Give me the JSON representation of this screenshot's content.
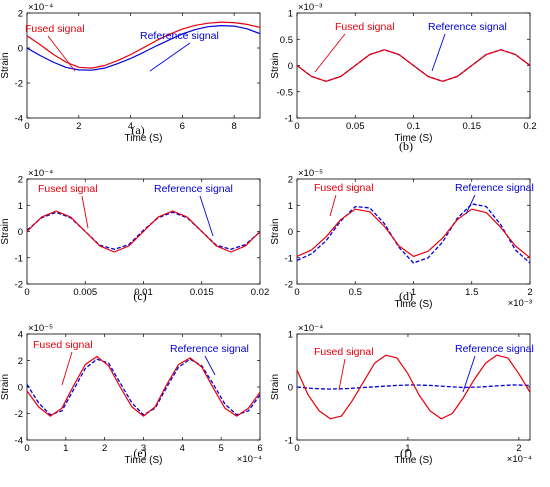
{
  "chart_data": [
    {
      "type": "line",
      "panel_label": "(a)",
      "xlabel": "Time (S)",
      "ylabel": "Strain",
      "exponent_y": "×10⁻⁴",
      "exponent_x": "",
      "xlim": [
        0,
        9
      ],
      "ylim": [
        -4,
        2
      ],
      "xticks": [
        0,
        2,
        4,
        6,
        8
      ],
      "xtick_labels": [
        "0",
        "2",
        "4",
        "6",
        "8"
      ],
      "yticks": [
        -4,
        -2,
        0,
        2
      ],
      "ytick_labels": [
        "-4",
        "-2",
        "0",
        "2"
      ],
      "annotations": [
        {
          "text": "Fused signal",
          "color": "#e8000b"
        },
        {
          "text": "Reference signal",
          "color": "#0000dd"
        }
      ],
      "series": [
        {
          "color": "#e8000b",
          "style": "solid",
          "x": [
            0,
            0.5,
            1,
            1.5,
            2,
            2.5,
            3,
            3.5,
            4,
            4.5,
            5,
            5.5,
            6,
            6.5,
            7,
            7.5,
            8,
            8.5,
            9
          ],
          "y": [
            0.7,
            0.2,
            -0.35,
            -0.8,
            -1.1,
            -1.15,
            -1.0,
            -0.72,
            -0.38,
            0.02,
            0.42,
            0.78,
            1.08,
            1.3,
            1.42,
            1.48,
            1.45,
            1.35,
            1.18
          ]
        },
        {
          "color": "#0000dd",
          "style": "solid",
          "x": [
            0,
            0.5,
            1,
            1.5,
            2,
            2.5,
            3,
            3.5,
            4,
            4.5,
            5,
            5.5,
            6,
            6.5,
            7,
            7.5,
            8,
            8.5,
            9
          ],
          "y": [
            0.0,
            -0.42,
            -0.8,
            -1.1,
            -1.25,
            -1.27,
            -1.15,
            -0.9,
            -0.6,
            -0.25,
            0.12,
            0.47,
            0.8,
            1.05,
            1.22,
            1.28,
            1.25,
            1.1,
            0.82
          ]
        }
      ]
    },
    {
      "type": "line",
      "panel_label": "(b)",
      "xlabel": "Time (S)",
      "ylabel": "Strain",
      "exponent_y": "×10⁻³",
      "exponent_x": "",
      "xlim": [
        0,
        0.2
      ],
      "ylim": [
        -1,
        1
      ],
      "xticks": [
        0,
        0.05,
        0.1,
        0.15,
        0.2
      ],
      "xtick_labels": [
        "0",
        "0.05",
        "0.1",
        "0.15",
        "0.2"
      ],
      "yticks": [
        -1,
        -0.5,
        0,
        0.5,
        1
      ],
      "ytick_labels": [
        "-1",
        "-0.5",
        "0",
        "0.5",
        "1"
      ],
      "annotations": [
        {
          "text": "Fused signal",
          "color": "#e8000b"
        },
        {
          "text": "Reference signal",
          "color": "#0000dd"
        }
      ],
      "series": [
        {
          "color": "#0000dd",
          "style": "dashed",
          "x": [
            0,
            0.0125,
            0.025,
            0.0375,
            0.05,
            0.0625,
            0.075,
            0.0875,
            0.1,
            0.1125,
            0.125,
            0.1375,
            0.15,
            0.1625,
            0.175,
            0.1875,
            0.2
          ],
          "y": [
            0.0,
            -0.21,
            -0.3,
            -0.21,
            0.0,
            0.21,
            0.3,
            0.21,
            0.0,
            -0.21,
            -0.3,
            -0.21,
            0.0,
            0.21,
            0.3,
            0.21,
            0.0
          ]
        },
        {
          "color": "#e8000b",
          "style": "solid",
          "x": [
            0,
            0.0125,
            0.025,
            0.0375,
            0.05,
            0.0625,
            0.075,
            0.0875,
            0.1,
            0.1125,
            0.125,
            0.1375,
            0.15,
            0.1625,
            0.175,
            0.1875,
            0.2
          ],
          "y": [
            0.0,
            -0.21,
            -0.3,
            -0.21,
            0.0,
            0.21,
            0.3,
            0.21,
            0.0,
            -0.21,
            -0.3,
            -0.21,
            0.0,
            0.21,
            0.3,
            0.21,
            0.0
          ]
        }
      ]
    },
    {
      "type": "line",
      "panel_label": "(c)",
      "xlabel": "",
      "ylabel": "Strain",
      "exponent_y": "×10⁻⁴",
      "exponent_x": "",
      "xlim": [
        0,
        0.02
      ],
      "ylim": [
        -2,
        2
      ],
      "xticks": [
        0,
        0.005,
        0.01,
        0.015,
        0.02
      ],
      "xtick_labels": [
        "0",
        "0.005",
        "0.01",
        "0.015",
        "0.02"
      ],
      "yticks": [
        -2,
        -1,
        0,
        1,
        2
      ],
      "ytick_labels": [
        "-2",
        "-1",
        "0",
        "1",
        "2"
      ],
      "annotations": [
        {
          "text": "Fused signal",
          "color": "#e8000b"
        },
        {
          "text": "Reference signal",
          "color": "#0000dd"
        }
      ],
      "series": [
        {
          "color": "#0000dd",
          "style": "dashed",
          "x": [
            0,
            0.00125,
            0.0025,
            0.00375,
            0.005,
            0.00625,
            0.0075,
            0.00875,
            0.01,
            0.01125,
            0.0125,
            0.01375,
            0.015,
            0.01625,
            0.0175,
            0.01875,
            0.02
          ],
          "y": [
            0.05,
            0.52,
            0.73,
            0.52,
            0.0,
            -0.52,
            -0.68,
            -0.5,
            0.05,
            0.52,
            0.73,
            0.52,
            0.0,
            -0.52,
            -0.68,
            -0.5,
            -0.02
          ]
        },
        {
          "color": "#e8000b",
          "style": "solid",
          "x": [
            0,
            0.00125,
            0.0025,
            0.00375,
            0.005,
            0.00625,
            0.0075,
            0.00875,
            0.01,
            0.01125,
            0.0125,
            0.01375,
            0.015,
            0.01625,
            0.0175,
            0.01875,
            0.02
          ],
          "y": [
            0.0,
            0.55,
            0.78,
            0.55,
            0.0,
            -0.55,
            -0.78,
            -0.55,
            0.0,
            0.55,
            0.78,
            0.55,
            0.0,
            -0.55,
            -0.78,
            -0.55,
            0.0
          ]
        }
      ]
    },
    {
      "type": "line",
      "panel_label": "(d)",
      "xlabel": "Time (S)",
      "ylabel": "Strain",
      "exponent_y": "×10⁻⁵",
      "exponent_x": "×10⁻³",
      "xlim": [
        0,
        2
      ],
      "ylim": [
        -2,
        2
      ],
      "xticks": [
        0,
        0.5,
        1,
        1.5,
        2
      ],
      "xtick_labels": [
        "0",
        "0.5",
        "1",
        "1.5",
        "2"
      ],
      "yticks": [
        -2,
        -1,
        0,
        1,
        2
      ],
      "ytick_labels": [
        "-2",
        "-1",
        "0",
        "1",
        "2"
      ],
      "annotations": [
        {
          "text": "Fused signal",
          "color": "#e8000b"
        },
        {
          "text": "Reference signal",
          "color": "#0000dd"
        }
      ],
      "series": [
        {
          "color": "#0000dd",
          "style": "dashed",
          "x": [
            0,
            0.125,
            0.25,
            0.375,
            0.5,
            0.625,
            0.75,
            0.875,
            1,
            1.125,
            1.25,
            1.375,
            1.5,
            1.625,
            1.75,
            1.875,
            2
          ],
          "y": [
            -1.1,
            -0.85,
            -0.35,
            0.4,
            0.95,
            0.9,
            0.3,
            -0.6,
            -1.2,
            -1.0,
            -0.4,
            0.5,
            1.05,
            0.95,
            0.25,
            -0.7,
            -1.2
          ]
        },
        {
          "color": "#e8000b",
          "style": "solid",
          "x": [
            0,
            0.125,
            0.25,
            0.375,
            0.5,
            0.625,
            0.75,
            0.875,
            1,
            1.125,
            1.25,
            1.375,
            1.5,
            1.625,
            1.75,
            1.875,
            2
          ],
          "y": [
            -0.95,
            -0.7,
            -0.2,
            0.45,
            0.85,
            0.75,
            0.2,
            -0.55,
            -0.95,
            -0.75,
            -0.25,
            0.45,
            0.85,
            0.72,
            0.15,
            -0.55,
            -1.0
          ]
        }
      ]
    },
    {
      "type": "line",
      "panel_label": "(e)",
      "xlabel": "Time (S)",
      "ylabel": "Strain",
      "exponent_y": "×10⁻⁵",
      "exponent_x": "×10⁻⁴",
      "xlim": [
        0,
        6
      ],
      "ylim": [
        -4,
        4
      ],
      "xticks": [
        0,
        1,
        2,
        3,
        4,
        5,
        6
      ],
      "xtick_labels": [
        "0",
        "1",
        "2",
        "3",
        "4",
        "5",
        "6"
      ],
      "yticks": [
        -4,
        -2,
        0,
        2,
        4
      ],
      "ytick_labels": [
        "-4",
        "-2",
        "0",
        "2",
        "4"
      ],
      "annotations": [
        {
          "text": "Fused signal",
          "color": "#e8000b"
        },
        {
          "text": "Reference signal",
          "color": "#0000dd"
        }
      ],
      "series": [
        {
          "color": "#0000dd",
          "style": "dashed",
          "x": [
            0,
            0.3,
            0.6,
            0.9,
            1.2,
            1.5,
            1.8,
            2.1,
            2.4,
            2.7,
            3.0,
            3.3,
            3.6,
            3.9,
            4.2,
            4.5,
            4.8,
            5.1,
            5.4,
            5.7,
            6.0
          ],
          "y": [
            0.2,
            -1.2,
            -2.1,
            -1.8,
            -0.2,
            1.4,
            2.1,
            1.8,
            0.3,
            -1.2,
            -2.1,
            -1.6,
            0.0,
            1.5,
            2.1,
            1.6,
            0.2,
            -1.3,
            -2.1,
            -1.8,
            -0.6
          ]
        },
        {
          "color": "#e8000b",
          "style": "solid",
          "x": [
            0,
            0.3,
            0.6,
            0.9,
            1.2,
            1.5,
            1.8,
            2.1,
            2.4,
            2.7,
            3.0,
            3.3,
            3.6,
            3.9,
            4.2,
            4.5,
            4.8,
            5.1,
            5.4,
            5.7,
            6.0
          ],
          "y": [
            -0.3,
            -1.5,
            -2.2,
            -1.6,
            0.1,
            1.7,
            2.3,
            1.6,
            0.0,
            -1.5,
            -2.2,
            -1.5,
            0.2,
            1.7,
            2.2,
            1.5,
            -0.1,
            -1.6,
            -2.2,
            -1.6,
            -0.4
          ]
        }
      ]
    },
    {
      "type": "line",
      "panel_label": "(f)",
      "xlabel": "Time (S)",
      "ylabel": "Strain",
      "exponent_y": "×10⁻⁴",
      "exponent_x": "×10⁻⁴",
      "xlim": [
        0,
        2.1
      ],
      "ylim": [
        -1,
        1
      ],
      "xticks": [
        0,
        1,
        2
      ],
      "xtick_labels": [
        "0",
        "1",
        "2"
      ],
      "yticks": [
        -1,
        0,
        1
      ],
      "ytick_labels": [
        "-1",
        "0",
        "1"
      ],
      "annotations": [
        {
          "text": "Fused signal",
          "color": "#e8000b"
        },
        {
          "text": "Reference signal",
          "color": "#0000dd"
        }
      ],
      "series": [
        {
          "color": "#0000dd",
          "style": "dashed",
          "x": [
            0,
            0.15,
            0.3,
            0.45,
            0.6,
            0.75,
            0.9,
            1.05,
            1.2,
            1.35,
            1.5,
            1.65,
            1.8,
            1.95,
            2.1
          ],
          "y": [
            0.0,
            -0.03,
            -0.04,
            -0.03,
            -0.01,
            0.01,
            0.03,
            0.04,
            0.03,
            0.01,
            -0.01,
            0.0,
            0.02,
            0.04,
            0.03
          ]
        },
        {
          "color": "#e8000b",
          "style": "solid",
          "x": [
            0,
            0.1,
            0.2,
            0.3,
            0.4,
            0.5,
            0.6,
            0.7,
            0.8,
            0.9,
            1.0,
            1.1,
            1.2,
            1.3,
            1.4,
            1.5,
            1.6,
            1.7,
            1.8,
            1.9,
            2.0,
            2.1
          ],
          "y": [
            0.32,
            -0.15,
            -0.45,
            -0.6,
            -0.55,
            -0.25,
            0.1,
            0.45,
            0.6,
            0.55,
            0.25,
            -0.15,
            -0.45,
            -0.6,
            -0.5,
            -0.2,
            0.15,
            0.45,
            0.6,
            0.55,
            0.25,
            -0.1
          ]
        }
      ]
    }
  ]
}
